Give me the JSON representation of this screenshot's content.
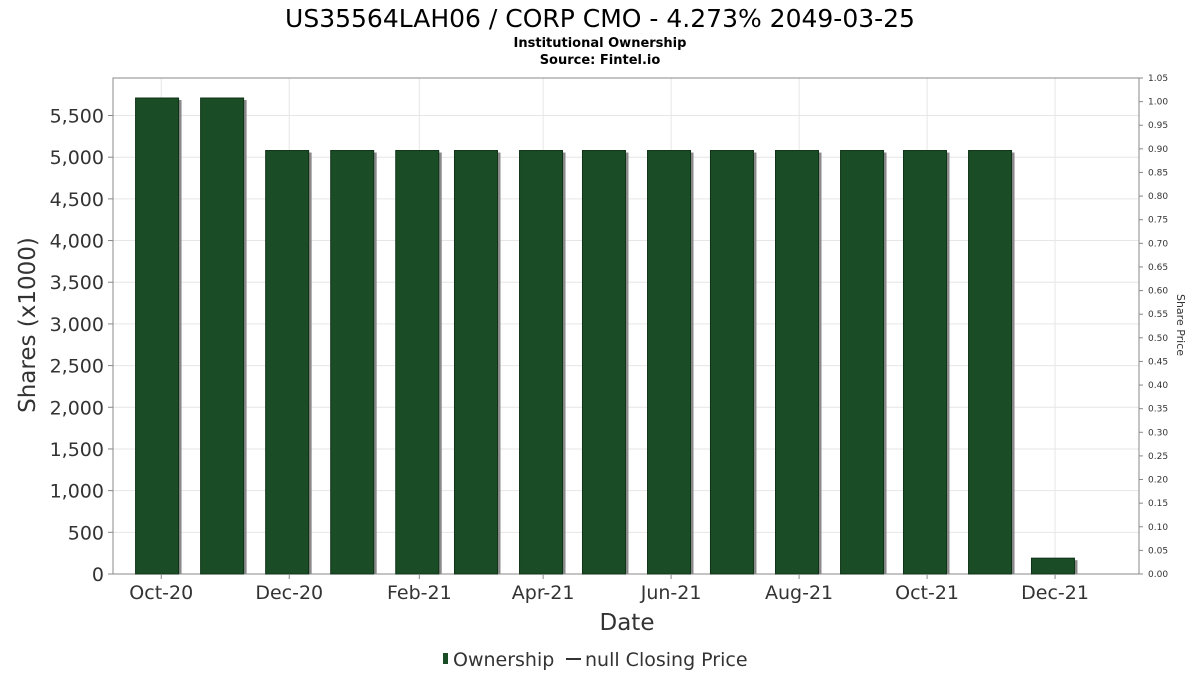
{
  "chart_data": {
    "type": "bar",
    "title": "US35564LAH06 / CORP CMO - 4.273% 2049-03-25",
    "subtitle": "Institutional Ownership",
    "source": "Source: Fintel.io",
    "xlabel": "Date",
    "ylabel": "Shares (x1000)",
    "y2label": "Share Price",
    "ylim": [
      0,
      5950
    ],
    "y2lim": [
      0,
      1.05
    ],
    "yticks": [
      "0",
      "500",
      "1,000",
      "1,500",
      "2,000",
      "2,500",
      "3,000",
      "3,500",
      "4,000",
      "4,500",
      "5,000",
      "5,500"
    ],
    "y2ticks": [
      "0.00",
      "0.05",
      "0.10",
      "0.15",
      "0.20",
      "0.25",
      "0.30",
      "0.35",
      "0.40",
      "0.45",
      "0.50",
      "0.55",
      "0.60",
      "0.65",
      "0.70",
      "0.75",
      "0.80",
      "0.85",
      "0.90",
      "0.95",
      "1.00",
      "1.05"
    ],
    "xticks": [
      "Oct-20",
      "Dec-20",
      "Feb-21",
      "Apr-21",
      "Jun-21",
      "Aug-21",
      "Oct-21",
      "Dec-21"
    ],
    "x_range": [
      "2020-09-08",
      "2022-01-10"
    ],
    "series": [
      {
        "name": "Ownership",
        "color": "#1a4d26",
        "x": [
          "2020-09-29",
          "2020-10-30",
          "2020-11-30",
          "2020-12-31",
          "2021-01-31",
          "2021-02-28",
          "2021-03-31",
          "2021-04-30",
          "2021-05-31",
          "2021-06-30",
          "2021-07-31",
          "2021-08-31",
          "2021-09-30",
          "2021-10-31",
          "2021-11-30"
        ],
        "values": [
          5710,
          5710,
          5080,
          5080,
          5080,
          5080,
          5080,
          5080,
          5080,
          5080,
          5080,
          5080,
          5080,
          5080,
          190
        ]
      }
    ],
    "legend": [
      {
        "label": "Ownership",
        "symbol": "bar",
        "color": "#1a4d26"
      },
      {
        "label": "null Closing Price",
        "symbol": "line",
        "color": "#333333"
      }
    ],
    "legend_position": "bottom",
    "grid": true
  }
}
